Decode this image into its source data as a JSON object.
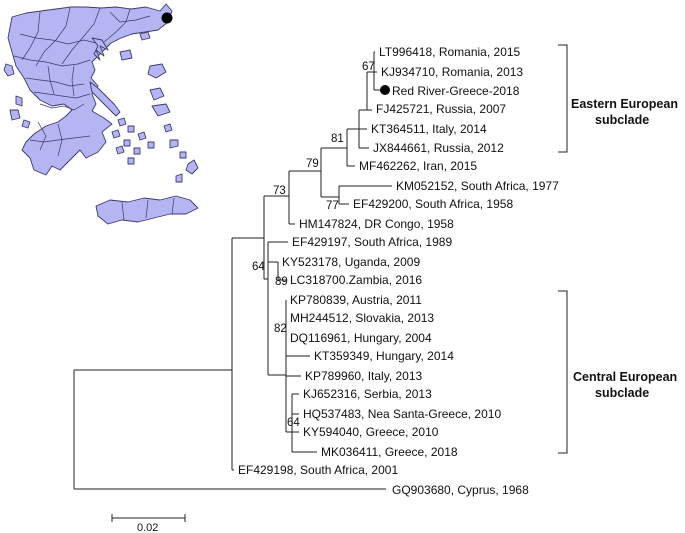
{
  "tree": {
    "leaves": [
      {
        "label": "LT996418,  Romania, 2015"
      },
      {
        "label": "KJ934710, Romania, 2013"
      },
      {
        "label": "Red River-Greece-2018",
        "marker": true
      },
      {
        "label": "FJ425721, Russia, 2007"
      },
      {
        "label": "KT364511, Italy, 2014"
      },
      {
        "label": "JX844661, Russia, 2012"
      },
      {
        "label": "MF462262, Iran, 2015"
      },
      {
        "label": "KM052152, South Africa, 1977"
      },
      {
        "label": "EF429200, South Africa, 1958"
      },
      {
        "label": "HM147824, DR Congo, 1958"
      },
      {
        "label": "EF429197, South Africa, 1989"
      },
      {
        "label": "KY523178, Uganda, 2009"
      },
      {
        "label": "LC318700.Zambia, 2016"
      },
      {
        "label": "KP780839, Austria, 2011"
      },
      {
        "label": "MH244512, Slovakia, 2013"
      },
      {
        "label": "DQ116961, Hungary, 2004"
      },
      {
        "label": "KT359349, Hungary, 2014"
      },
      {
        "label": "KP789960, Italy, 2013"
      },
      {
        "label": "KJ652316, Serbia, 2013"
      },
      {
        "label": "HQ537483, Nea Santa-Greece, 2010"
      },
      {
        "label": "KY594040, Greece, 2010"
      },
      {
        "label": "MK036411, Greece, 2018"
      },
      {
        "label": "EF429198, South Africa, 2001"
      },
      {
        "label": "GQ903680, Cyprus, 1968"
      }
    ],
    "bootstrap": [
      "67",
      "81",
      "79",
      "73",
      "77",
      "64",
      "89",
      "82",
      "64"
    ],
    "clades": [
      {
        "line1": "Eastern European",
        "line2": "subclade"
      },
      {
        "line1": "Central European",
        "line2": "subclade"
      }
    ],
    "scale_bar": "0.02"
  },
  "map": {
    "region_fill": "#b4b5f2",
    "outline_color": "#3a3a6a",
    "site_marker_color": "#000000"
  }
}
